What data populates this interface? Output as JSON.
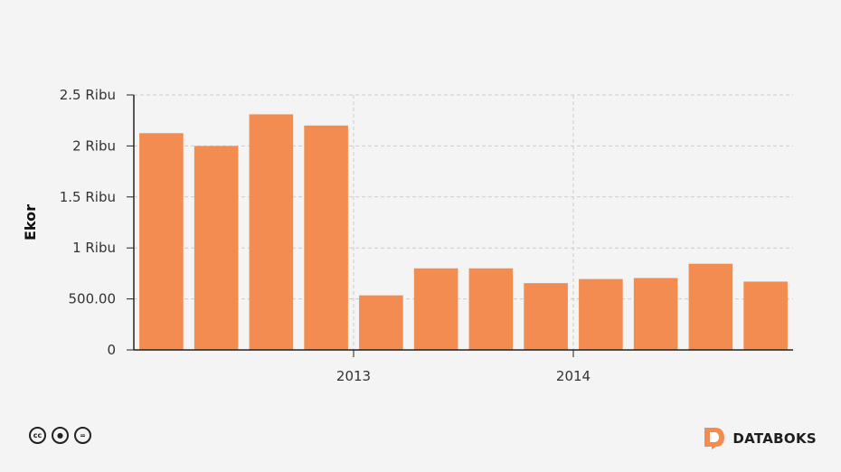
{
  "chart_data": {
    "type": "bar",
    "title": "",
    "xlabel": "",
    "ylabel": "Ekor",
    "ylim": [
      0,
      2500
    ],
    "yticks": [
      {
        "value": 0,
        "label": "0"
      },
      {
        "value": 500,
        "label": "500.00"
      },
      {
        "value": 1000,
        "label": "1 Ribu"
      },
      {
        "value": 1500,
        "label": "1.5 Ribu"
      },
      {
        "value": 2000,
        "label": "2 Ribu"
      },
      {
        "value": 2500,
        "label": "2.5 Ribu"
      }
    ],
    "xticks": [
      {
        "after_index": 3,
        "label": "2013"
      },
      {
        "after_index": 7,
        "label": "2014"
      }
    ],
    "values": [
      2125,
      2000,
      2310,
      2200,
      535,
      800,
      800,
      655,
      695,
      705,
      845,
      670
    ],
    "bar_color": "#f28c50",
    "grid": true,
    "legend": "none"
  },
  "footer": {
    "license_icons": [
      "cc-icon",
      "by-icon",
      "nd-icon"
    ],
    "license_glyphs": [
      "cc",
      "●",
      "="
    ],
    "brand_name": "DATABOKS",
    "brand_color": "#f28c50"
  }
}
